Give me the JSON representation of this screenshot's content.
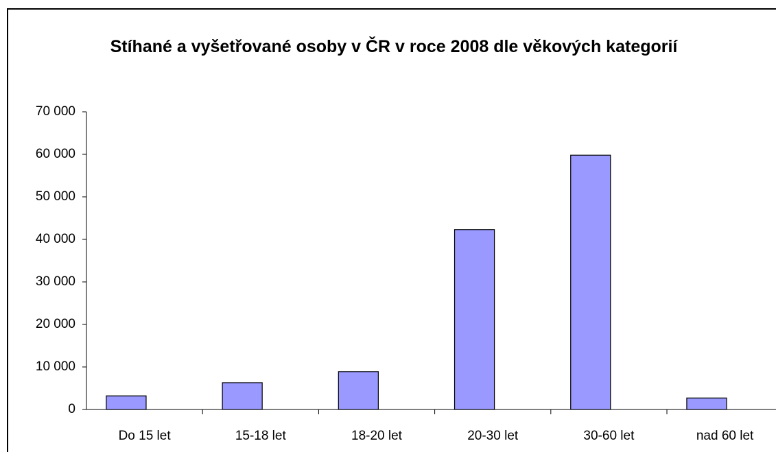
{
  "chart_data": {
    "type": "bar",
    "title": "Stíhané a vyšetřované osoby v ČR v roce 2008 dle věkových kategorií",
    "categories": [
      "Do 15 let",
      "15-18 let",
      "18-20 let",
      "20-30 let",
      "30-60 let",
      "nad 60 let"
    ],
    "values": [
      3200,
      6300,
      8900,
      42300,
      59800,
      2700
    ],
    "color": "#9999ff",
    "ylim": [
      0,
      70000
    ],
    "yticks": [
      0,
      {
        "value": 10000,
        "label": "10 000"
      },
      {
        "value": 20000,
        "label": "20 000"
      },
      {
        "value": 30000,
        "label": "30 000"
      },
      {
        "value": 40000,
        "label": "40 000"
      },
      {
        "value": 50000,
        "label": "50 000"
      },
      {
        "value": 60000,
        "label": "60 000"
      },
      {
        "value": 70000,
        "label": "70 000"
      }
    ]
  }
}
